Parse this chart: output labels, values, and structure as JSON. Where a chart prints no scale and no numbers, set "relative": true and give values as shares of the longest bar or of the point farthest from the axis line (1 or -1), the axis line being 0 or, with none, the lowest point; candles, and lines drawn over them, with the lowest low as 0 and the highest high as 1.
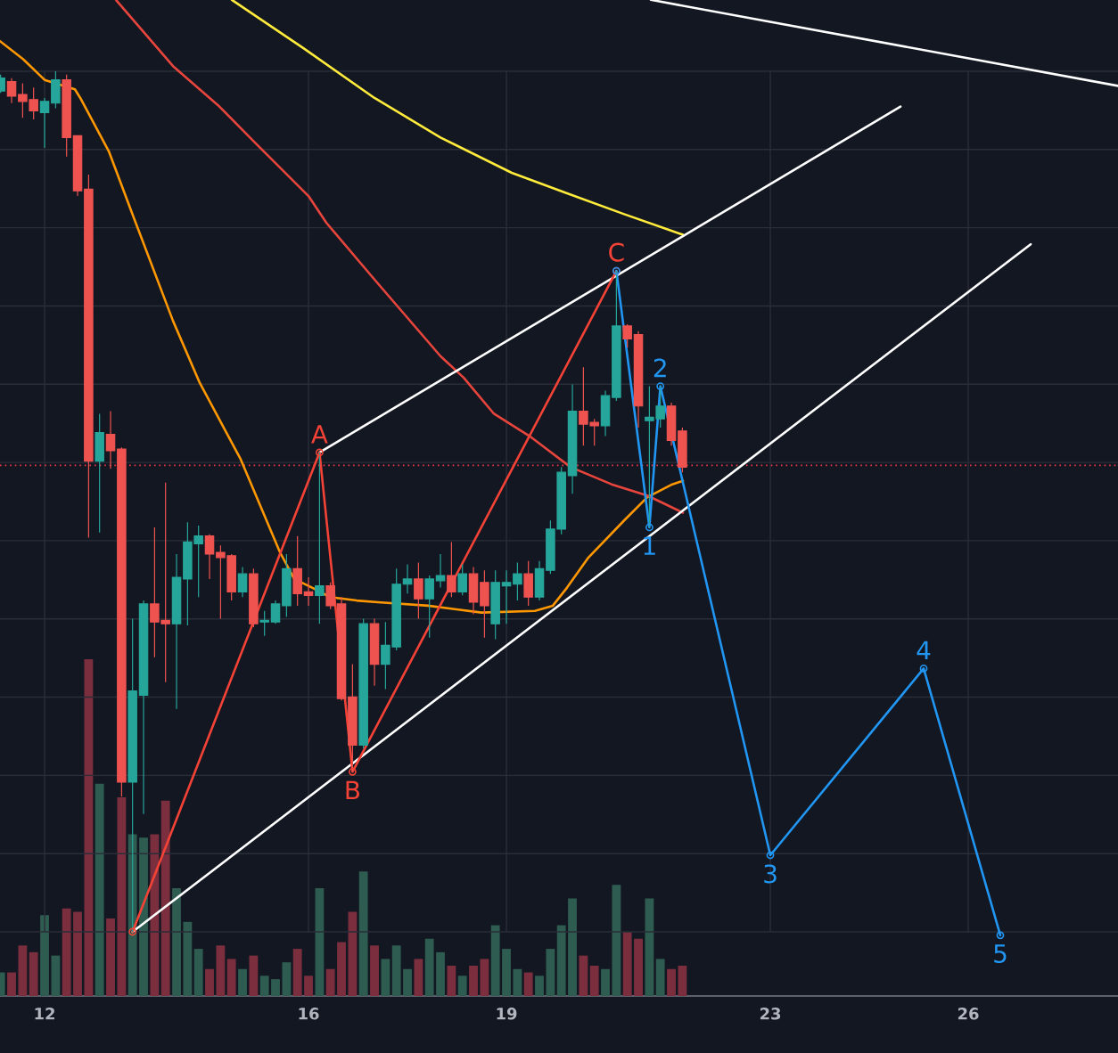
{
  "chart_data": [
    {
      "type": "candlestick",
      "relative": true,
      "grid": true,
      "xlim": [
        11.324,
        28.27
      ],
      "xticks": [
        12,
        16,
        19,
        23,
        26
      ],
      "colors": [
        "#26a69a",
        "#ef5350",
        "#ef5350",
        "#ef5350",
        "#26a69a",
        "#26a69a",
        "#ef5350",
        "#ef5350",
        "#ef5350",
        "#26a69a",
        "#ef5350",
        "#ef5350",
        "#26a69a",
        "#26a69a",
        "#ef5350",
        "#ef5350",
        "#26a69a",
        "#26a69a",
        "#26a69a",
        "#ef5350",
        "#ef5350",
        "#ef5350",
        "#26a69a",
        "#ef5350",
        "#26a69a",
        "#26a69a",
        "#26a69a",
        "#ef5350",
        "#ef5350",
        "#26a69a",
        "#ef5350",
        "#ef5350",
        "#ef5350",
        "#26a69a",
        "#ef5350",
        "#26a69a",
        "#26a69a",
        "#26a69a",
        "#ef5350",
        "#26a69a",
        "#26a69a",
        "#ef5350",
        "#26a69a",
        "#ef5350",
        "#ef5350",
        "#26a69a",
        "#26a69a",
        "#26a69a",
        "#ef5350",
        "#26a69a",
        "#26a69a",
        "#26a69a",
        "#26a69a",
        "#ef5350",
        "#ef5350",
        "#26a69a",
        "#26a69a",
        "#ef5350",
        "#ef5350",
        "#26a69a",
        "#26a69a",
        "#ef5350",
        "#ef5350"
      ],
      "x": [
        11.333,
        11.5,
        11.667,
        11.833,
        12,
        12.167,
        12.333,
        12.5,
        12.667,
        12.833,
        13,
        13.167,
        13.333,
        13.5,
        13.667,
        13.833,
        14,
        14.167,
        14.333,
        14.5,
        14.667,
        14.833,
        15,
        15.167,
        15.333,
        15.5,
        15.667,
        15.833,
        16,
        16.167,
        16.333,
        16.5,
        16.667,
        16.833,
        17,
        17.167,
        17.333,
        17.5,
        17.667,
        17.833,
        18,
        18.167,
        18.333,
        18.5,
        18.667,
        18.833,
        19,
        19.167,
        19.333,
        19.5,
        19.667,
        19.833,
        20,
        20.167,
        20.333,
        20.5,
        20.667,
        20.833,
        21,
        21.167,
        21.333,
        21.5,
        21.667
      ],
      "ohlc": [
        [
          0.977,
          0.996,
          0.975,
          0.992
        ],
        [
          0.988,
          0.992,
          0.963,
          0.971
        ],
        [
          0.973,
          0.986,
          0.946,
          0.965
        ],
        [
          0.967,
          0.981,
          0.944,
          0.954
        ],
        [
          0.952,
          0.969,
          0.911,
          0.965
        ],
        [
          0.963,
          1.0,
          0.957,
          0.99
        ],
        [
          0.99,
          0.996,
          0.901,
          0.923
        ],
        [
          0.925,
          0.925,
          0.855,
          0.861
        ],
        [
          0.863,
          0.88,
          0.458,
          0.547
        ],
        [
          0.547,
          0.602,
          0.464,
          0.58
        ],
        [
          0.578,
          0.605,
          0.538,
          0.559
        ],
        [
          0.561,
          0.563,
          0.157,
          0.174
        ],
        [
          0.174,
          0.364,
          0,
          0.28
        ],
        [
          0.275,
          0.385,
          0.137,
          0.381
        ],
        [
          0.381,
          0.47,
          0.319,
          0.36
        ],
        [
          0.362,
          0.522,
          0.29,
          0.358
        ],
        [
          0.358,
          0.439,
          0.259,
          0.412
        ],
        [
          0.41,
          0.476,
          0.356,
          0.453
        ],
        [
          0.451,
          0.472,
          0.389,
          0.46
        ],
        [
          0.46,
          0.462,
          0.41,
          0.439
        ],
        [
          0.441,
          0.449,
          0.364,
          0.435
        ],
        [
          0.437,
          0.439,
          0.385,
          0.395
        ],
        [
          0.395,
          0.424,
          0.389,
          0.416
        ],
        [
          0.416,
          0.422,
          0.354,
          0.358
        ],
        [
          0.36,
          0.373,
          0.344,
          0.362
        ],
        [
          0.36,
          0.385,
          0.358,
          0.381
        ],
        [
          0.379,
          0.439,
          0.366,
          0.422
        ],
        [
          0.422,
          0.46,
          0.379,
          0.393
        ],
        [
          0.395,
          0.412,
          0.379,
          0.391
        ],
        [
          0.391,
          0.557,
          0.358,
          0.402
        ],
        [
          0.402,
          0.406,
          0.375,
          0.379
        ],
        [
          0.381,
          0.389,
          0.269,
          0.271
        ],
        [
          0.273,
          0.311,
          0.186,
          0.217
        ],
        [
          0.217,
          0.364,
          0.213,
          0.358
        ],
        [
          0.358,
          0.364,
          0.286,
          0.311
        ],
        [
          0.311,
          0.36,
          0.282,
          0.333
        ],
        [
          0.331,
          0.422,
          0.327,
          0.404
        ],
        [
          0.404,
          0.427,
          0.393,
          0.41
        ],
        [
          0.41,
          0.429,
          0.364,
          0.387
        ],
        [
          0.387,
          0.414,
          0.342,
          0.41
        ],
        [
          0.408,
          0.439,
          0.4,
          0.414
        ],
        [
          0.414,
          0.453,
          0.389,
          0.395
        ],
        [
          0.395,
          0.427,
          0.391,
          0.416
        ],
        [
          0.416,
          0.424,
          0.369,
          0.383
        ],
        [
          0.406,
          0.42,
          0.342,
          0.379
        ],
        [
          0.358,
          0.42,
          0.34,
          0.406
        ],
        [
          0.402,
          0.42,
          0.358,
          0.406
        ],
        [
          0.404,
          0.429,
          0.385,
          0.416
        ],
        [
          0.416,
          0.431,
          0.379,
          0.389
        ],
        [
          0.389,
          0.431,
          0.385,
          0.422
        ],
        [
          0.42,
          0.478,
          0.416,
          0.468
        ],
        [
          0.468,
          0.54,
          0.462,
          0.534
        ],
        [
          0.53,
          0.636,
          0.509,
          0.605
        ],
        [
          0.605,
          0.656,
          0.565,
          0.59
        ],
        [
          0.592,
          0.596,
          0.565,
          0.588
        ],
        [
          0.588,
          0.629,
          0.576,
          0.623
        ],
        [
          0.621,
          0.768,
          0.617,
          0.704
        ],
        [
          0.704,
          0.706,
          0.679,
          0.689
        ],
        [
          0.694,
          0.698,
          0.586,
          0.611
        ],
        [
          0.594,
          0.634,
          0.47,
          0.598
        ],
        [
          0.596,
          0.634,
          0.586,
          0.611
        ],
        [
          0.611,
          0.615,
          0.565,
          0.571
        ],
        [
          0.582,
          0.586,
          0.534,
          0.54
        ]
      ],
      "series": [
        {
          "type": "line",
          "color": "#ff9800",
          "x": [
            11.324,
            11.676,
            12,
            12.459,
            12.541,
            12.973,
            13.351,
            13.946,
            14.351,
            14.973,
            15.568,
            15.784,
            16.054,
            16.324,
            16.73,
            17.054,
            17.811,
            18.622,
            19.432,
            19.703,
            19.919,
            20.243,
            20.784,
            21.135,
            21.514,
            21.676
          ],
          "values": [
            1.035,
            1.014,
            0.99,
            0.979,
            0.969,
            0.907,
            0.83,
            0.71,
            0.638,
            0.549,
            0.441,
            0.41,
            0.4,
            0.389,
            0.385,
            0.383,
            0.379,
            0.371,
            0.373,
            0.379,
            0.4,
            0.435,
            0.478,
            0.505,
            0.52,
            0.524
          ]
        },
        {
          "type": "line",
          "color": "#e8453c",
          "x": [
            13.081,
            13.946,
            14.649,
            15.189,
            16,
            16.27,
            17,
            18,
            18.351,
            18.811,
            19.351,
            19.973,
            20.595,
            21.135,
            21.676
          ],
          "values": [
            1.083,
            1.006,
            0.959,
            0.917,
            0.855,
            0.824,
            0.758,
            0.669,
            0.644,
            0.602,
            0.576,
            0.54,
            0.52,
            0.507,
            0.487
          ]
        },
        {
          "type": "line",
          "color": "#ffeb3b",
          "x": [
            14.838,
            15.919,
            17,
            18,
            19.081,
            19.892,
            20.784,
            21.676
          ],
          "values": [
            1.083,
            1.027,
            0.969,
            0.923,
            0.882,
            0.859,
            0.834,
            0.81
          ]
        },
        {
          "type": "line",
          "color": "#ffffff",
          "x": [
            13.333,
            26.946
          ],
          "values": [
            0,
            0.799
          ]
        },
        {
          "type": "line",
          "color": "#ffffff",
          "x": [
            16.167,
            24.973
          ],
          "values": [
            0.557,
            0.959
          ]
        },
        {
          "type": "line",
          "color": "#ffffff",
          "x": [
            21.189,
            28.27
          ],
          "values": [
            1.083,
            0.983
          ]
        },
        {
          "type": "line",
          "color": "#f44336",
          "marker": "circle",
          "x": [
            13.333,
            16.167,
            16.667,
            20.667
          ],
          "values": [
            0,
            0.557,
            0.186,
            0.768
          ]
        },
        {
          "type": "line",
          "color": "#2196f3",
          "marker": "circle",
          "x": [
            20.667,
            21.167,
            21.333,
            23,
            25.324,
            26.486
          ],
          "values": [
            0.768,
            0.47,
            0.634,
            0.089,
            0.306,
            -0.004
          ]
        }
      ],
      "ref_lines": [
        {
          "axis": "y",
          "value": 0.542,
          "color": "#f23645",
          "line_style": "dotted"
        }
      ],
      "annotations": [
        {
          "text": "A",
          "x": 16.167,
          "y": 0.557
        },
        {
          "text": "B",
          "x": 16.667,
          "y": 0.186
        },
        {
          "text": "C",
          "x": 20.667,
          "y": 0.768
        },
        {
          "text": "1",
          "x": 21.167,
          "y": 0.47
        },
        {
          "text": "2",
          "x": 21.333,
          "y": 0.634
        },
        {
          "text": "3",
          "x": 23,
          "y": 0.089
        },
        {
          "text": "4",
          "x": 25.324,
          "y": 0.306
        },
        {
          "text": "5",
          "x": 26.486,
          "y": -0.004
        }
      ]
    },
    {
      "type": "bar",
      "relative": true,
      "tick_labels": false,
      "xlim": [
        11.324,
        28.27
      ],
      "xticks": [
        12,
        16,
        19,
        23,
        26
      ],
      "x": [
        11.333,
        11.5,
        11.667,
        11.833,
        12,
        12.167,
        12.333,
        12.5,
        12.667,
        12.833,
        13,
        13.167,
        13.333,
        13.5,
        13.667,
        13.833,
        14,
        14.167,
        14.333,
        14.5,
        14.667,
        14.833,
        15,
        15.167,
        15.333,
        15.5,
        15.667,
        15.833,
        16,
        16.167,
        16.333,
        16.5,
        16.667,
        16.833,
        17,
        17.167,
        17.333,
        17.5,
        17.667,
        17.833,
        18,
        18.167,
        18.333,
        18.5,
        18.667,
        18.833,
        19,
        19.167,
        19.333,
        19.5,
        19.667,
        19.833,
        20,
        20.167,
        20.333,
        20.5,
        20.667,
        20.833,
        21,
        21.167,
        21.333,
        21.5,
        21.667
      ],
      "values": [
        0.07,
        0.07,
        0.15,
        0.13,
        0.24,
        0.12,
        0.26,
        0.25,
        1,
        0.63,
        0.23,
        0.59,
        0.48,
        0.47,
        0.48,
        0.58,
        0.32,
        0.22,
        0.14,
        0.08,
        0.15,
        0.11,
        0.08,
        0.12,
        0.06,
        0.05,
        0.1,
        0.14,
        0.06,
        0.32,
        0.08,
        0.16,
        0.25,
        0.37,
        0.15,
        0.11,
        0.15,
        0.08,
        0.11,
        0.17,
        0.13,
        0.09,
        0.06,
        0.09,
        0.11,
        0.21,
        0.14,
        0.08,
        0.07,
        0.06,
        0.14,
        0.21,
        0.29,
        0.12,
        0.09,
        0.08,
        0.33,
        0.19,
        0.17,
        0.29,
        0.11,
        0.08,
        0.09
      ],
      "colors": [
        "#2e5c50",
        "#7b2f3e",
        "#7b2f3e",
        "#7b2f3e",
        "#2e5c50",
        "#2e5c50",
        "#7b2f3e",
        "#7b2f3e",
        "#7b2f3e",
        "#2e5c50",
        "#7b2f3e",
        "#7b2f3e",
        "#2e5c50",
        "#2e5c50",
        "#7b2f3e",
        "#7b2f3e",
        "#2e5c50",
        "#2e5c50",
        "#2e5c50",
        "#7b2f3e",
        "#7b2f3e",
        "#7b2f3e",
        "#2e5c50",
        "#7b2f3e",
        "#2e5c50",
        "#2e5c50",
        "#2e5c50",
        "#7b2f3e",
        "#7b2f3e",
        "#2e5c50",
        "#7b2f3e",
        "#7b2f3e",
        "#7b2f3e",
        "#2e5c50",
        "#7b2f3e",
        "#2e5c50",
        "#2e5c50",
        "#2e5c50",
        "#7b2f3e",
        "#2e5c50",
        "#2e5c50",
        "#7b2f3e",
        "#2e5c50",
        "#7b2f3e",
        "#7b2f3e",
        "#2e5c50",
        "#2e5c50",
        "#2e5c50",
        "#7b2f3e",
        "#2e5c50",
        "#2e5c50",
        "#2e5c50",
        "#2e5c50",
        "#7b2f3e",
        "#7b2f3e",
        "#2e5c50",
        "#2e5c50",
        "#7b2f3e",
        "#7b2f3e",
        "#2e5c50",
        "#2e5c50",
        "#7b2f3e",
        "#7b2f3e"
      ]
    }
  ]
}
